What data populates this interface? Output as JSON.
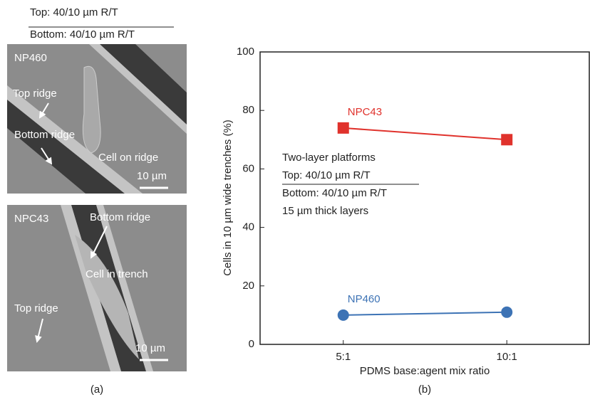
{
  "panel_a": {
    "header_top": "Top: 40/10 µm R/T",
    "header_bottom": "Bottom: 40/10 µm R/T",
    "images": [
      {
        "name": "NP460",
        "labels": [
          "Top ridge",
          "Bottom ridge",
          "Cell on ridge"
        ],
        "scale": "10 µm"
      },
      {
        "name": "NPC43",
        "labels": [
          "Bottom ridge",
          "Cell in trench",
          "Top ridge"
        ],
        "scale": "10 µm"
      }
    ],
    "caption": "(a)"
  },
  "chart_data": {
    "type": "line",
    "caption": "(b)",
    "x_label": "PDMS base:agent mix ratio",
    "y_label": "Cells in 10 µm wide trenches (%)",
    "categories": [
      "5:1",
      "10:1"
    ],
    "series": [
      {
        "name": "NPC43",
        "color": "#e0322c",
        "marker": "square",
        "values": [
          74,
          70
        ]
      },
      {
        "name": "NP460",
        "color": "#3d73b5",
        "marker": "circle",
        "values": [
          10,
          11
        ]
      }
    ],
    "annotation": [
      "Two-layer platforms",
      "Top: 40/10 µm R/T",
      "Bottom: 40/10 µm R/T",
      "15 µm thick layers"
    ],
    "ylim": [
      0,
      100
    ],
    "yticks": [
      0,
      20,
      40,
      60,
      80,
      100
    ],
    "grid": false
  }
}
